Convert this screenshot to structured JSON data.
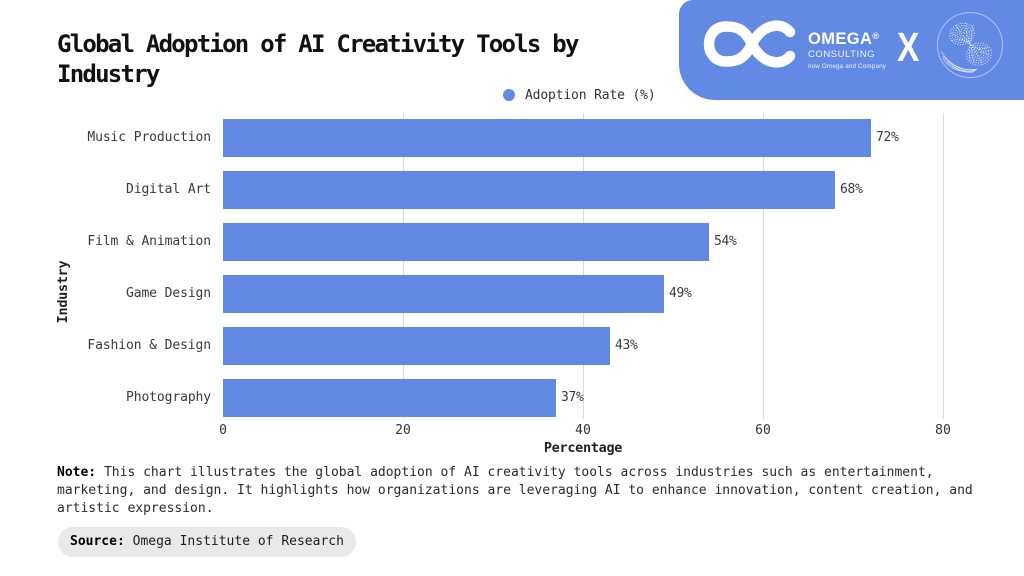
{
  "header": {
    "brand": {
      "name": "OMEGA",
      "registered_mark": "®",
      "subtitle": "CONSULTING",
      "tagline": "now Omega and Company",
      "collab_separator": "X"
    },
    "banner_color": "#6289E4"
  },
  "title": "Global Adoption of AI Creativity Tools by Industry",
  "legend": {
    "label": "Adoption Rate (%)",
    "dot_color": "#6289E4"
  },
  "chart_data": {
    "type": "bar",
    "orientation": "horizontal",
    "title": "Global Adoption of AI Creativity Tools by Industry",
    "categories": [
      "Music Production",
      "Digital Art",
      "Film & Animation",
      "Game Design",
      "Fashion & Design",
      "Photography"
    ],
    "values": [
      72,
      68,
      54,
      49,
      43,
      37
    ],
    "value_labels": [
      "72%",
      "68%",
      "54%",
      "49%",
      "43%",
      "37%"
    ],
    "series_name": "Adoption Rate (%)",
    "xlabel": "Percentage",
    "ylabel": "Industry",
    "xlim": [
      0,
      80
    ],
    "xticks": [
      "0",
      "20",
      "40",
      "60",
      "80"
    ],
    "grid": true,
    "legend_position": "top",
    "bar_color": "#6289E4"
  },
  "note": {
    "label": "Note:",
    "text": " This chart illustrates the global adoption of AI creativity tools across industries such as entertainment, marketing, and design. It highlights how organizations are leveraging AI to enhance innovation, content creation, and artistic expression."
  },
  "source": {
    "label": "Source:",
    "text": " Omega Institute of Research"
  }
}
